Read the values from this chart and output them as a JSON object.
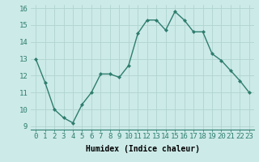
{
  "x": [
    0,
    1,
    2,
    3,
    4,
    5,
    6,
    7,
    8,
    9,
    10,
    11,
    12,
    13,
    14,
    15,
    16,
    17,
    18,
    19,
    20,
    21,
    22,
    23
  ],
  "y": [
    13.0,
    11.6,
    10.0,
    9.5,
    9.2,
    10.3,
    11.0,
    12.1,
    12.1,
    11.9,
    12.6,
    14.5,
    15.3,
    15.3,
    14.7,
    15.8,
    15.3,
    14.6,
    14.6,
    13.3,
    12.9,
    12.3,
    11.7,
    11.0
  ],
  "line_color": "#2e7d6e",
  "marker": "D",
  "marker_size": 2,
  "line_width": 1.0,
  "bg_color": "#cceae8",
  "grid_color": "#b0d4d0",
  "xlabel": "Humidex (Indice chaleur)",
  "ylim": [
    8.8,
    16.2
  ],
  "xlim": [
    -0.5,
    23.5
  ],
  "yticks": [
    9,
    10,
    11,
    12,
    13,
    14,
    15,
    16
  ],
  "xtick_labels": [
    "0",
    "1",
    "2",
    "3",
    "4",
    "5",
    "6",
    "7",
    "8",
    "9",
    "10",
    "11",
    "12",
    "13",
    "14",
    "15",
    "16",
    "17",
    "18",
    "19",
    "20",
    "21",
    "22",
    "23"
  ],
  "xlabel_fontsize": 7,
  "tick_fontsize": 6.5
}
